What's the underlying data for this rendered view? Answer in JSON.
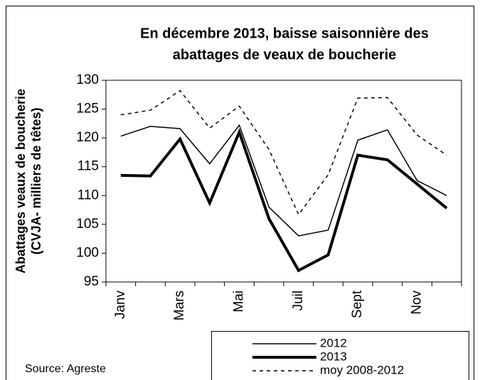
{
  "chart_data": {
    "type": "line",
    "title": [
      "En décembre 2013, baisse saisonnière des",
      "abattages de veaux de boucherie"
    ],
    "y_label": [
      "Abattages veaux de boucherie",
      "(CVJA- milliers de têtes)"
    ],
    "source": "Source: Agreste",
    "categories": [
      "Janv",
      null,
      "Mars",
      null,
      "Mai",
      null,
      "Juil",
      null,
      "Sept",
      null,
      "Nov",
      null
    ],
    "series": [
      {
        "name": "2012",
        "color": "#000000",
        "width": 1.5,
        "dash": "solid",
        "values": [
          120.3,
          122,
          121.6,
          115.5,
          122.2,
          108,
          103,
          104,
          119.6,
          121.4,
          112.6,
          110
        ]
      },
      {
        "name": "2013",
        "color": "#000000",
        "width": 4,
        "dash": "solid",
        "values": [
          113.5,
          113.4,
          119.8,
          108.7,
          121,
          106,
          97,
          99.7,
          117,
          116.2,
          112,
          107.8
        ]
      },
      {
        "name": "moy 2008-2012",
        "color": "#000000",
        "width": 1.5,
        "dash": "dashed",
        "values": [
          124,
          124.8,
          128.2,
          121.7,
          125.5,
          118,
          106.7,
          113.6,
          126.9,
          127,
          120.5,
          117
        ]
      }
    ],
    "ylim": [
      95,
      130
    ],
    "yticks": [
      95,
      100,
      105,
      110,
      115,
      120,
      125,
      130
    ]
  }
}
